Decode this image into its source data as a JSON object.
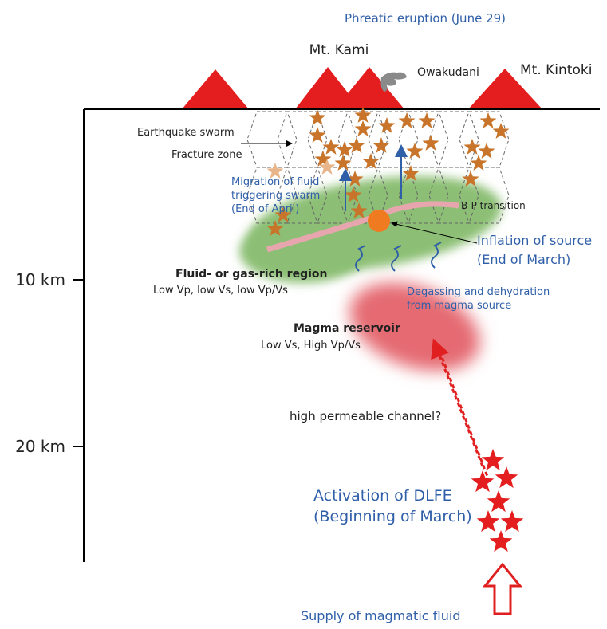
{
  "depth_axis": {
    "ticks": [
      "10 km",
      "20 km"
    ]
  },
  "surface": {
    "eruption": "Phreatic eruption (June 29)",
    "mt_kami": "Mt. Kami",
    "owakudani": "Owakudani",
    "mt_kintoki": "Mt. Kintoki"
  },
  "shallow": {
    "swarm": "Earthquake swarm",
    "fracture": "Fracture zone",
    "migration": [
      "Migration of fluid",
      "triggering swarm",
      "(End of April)"
    ],
    "bp": "B-P transition",
    "inflation": [
      "Inflation of source",
      "(End of March)"
    ]
  },
  "fluid_region": {
    "title": "Fluid- or gas-rich region",
    "detail": "Low Vp, low Vs, low Vp/Vs"
  },
  "degassing": [
    "Degassing and dehydration",
    "from magma source"
  ],
  "magma": {
    "title": "Magma reservoir",
    "detail": "Low Vs, High Vp/Vs"
  },
  "channel": "high permeable channel?",
  "dlfe": [
    "Activation of DLFE",
    "(Beginning of March)"
  ],
  "supply": "Supply of magmatic fluid"
}
